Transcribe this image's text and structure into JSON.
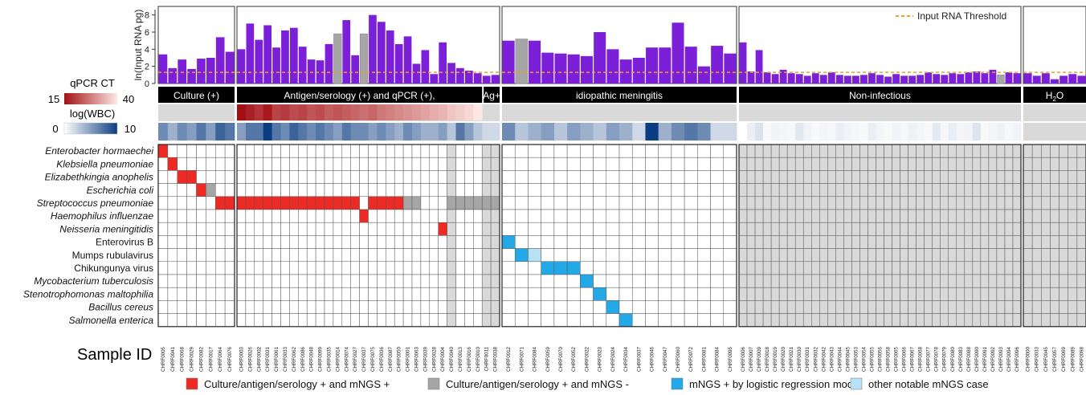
{
  "chart_data": {
    "type": "heatmap",
    "top_panel": {
      "type": "bar",
      "ylabel": "ln(Input RNA pg)",
      "y_ticks": [
        "0",
        "2",
        "4",
        "6",
        "8"
      ],
      "ylim": [
        0,
        9
      ],
      "threshold": {
        "label": "Input RNA Threshold",
        "value": 1.3,
        "color": "#f0a020"
      },
      "bar_color": "#7b1fd9",
      "fail_color": "#a6a6a6",
      "values": [
        3.4,
        1.8,
        2.8,
        1.7,
        2.9,
        3.0,
        5.4,
        3.7,
        4.0,
        7.0,
        5.1,
        6.8,
        4.2,
        6.2,
        6.5,
        4.3,
        2.8,
        2.7,
        4.6,
        5.8,
        7.4,
        3.3,
        5.8,
        8.0,
        7.2,
        6.2,
        4.6,
        5.5,
        2.3,
        3.9,
        1.1,
        4.8,
        2.4,
        1.8,
        1.5,
        1.2,
        0.9,
        1.0,
        5.0,
        5.2,
        5.0,
        3.6,
        3.5,
        3.4,
        3.2,
        6.0,
        4.0,
        2.8,
        3.0,
        4.2,
        4.2,
        7.1,
        4.3,
        2.0,
        4.4,
        3.5,
        4.8,
        1.4,
        3.9,
        1.3,
        1.1,
        1.6,
        1.2,
        1.1,
        0.9,
        1.2,
        1.0,
        1.3,
        1.0,
        0.9,
        0.9,
        1.0,
        1.2,
        1.0,
        0.8,
        1.1,
        0.9,
        0.9,
        1.0,
        1.3,
        1.1,
        1.0,
        1.2,
        1.1,
        1.3,
        1.4,
        1.2,
        1.6,
        1.0,
        1.3,
        1.2,
        1.2,
        0.9,
        1.2,
        0.5,
        0.9,
        1.1,
        0.9
      ],
      "failed_indices": [
        19,
        22,
        39,
        88
      ]
    },
    "groups": [
      {
        "label": "Culture (+)",
        "start": 0,
        "count": 8
      },
      {
        "label": "Antigen/serology (+) and qPCR (+),",
        "start": 8,
        "count": 28
      },
      {
        "label": "Ag+",
        "start": 36,
        "count": 2
      },
      {
        "label": "idiopathic meningitis",
        "start": 38,
        "count": 18
      },
      {
        "label": "Non-infectious",
        "start": 56,
        "count": 35
      },
      {
        "label": "H",
        "label_sub": "2",
        "label_end": "O",
        "start": 91,
        "count": 7
      }
    ],
    "qpcr_legend": {
      "title": "qPCR CT",
      "min": "15",
      "max": "40",
      "color_low": "#a31014",
      "color_high": "#fde8e4"
    },
    "wbc_legend": {
      "title": "log(WBC)",
      "min": "0",
      "max": "10",
      "color_low": "#ffffff",
      "color_high": "#0b3d82"
    },
    "qpcr_values": [
      15,
      17,
      19,
      16,
      21,
      20,
      22,
      21,
      23,
      22,
      24,
      23,
      24,
      25,
      26,
      25,
      27,
      28,
      29,
      30,
      31,
      32,
      33,
      34,
      36,
      37,
      38,
      40
    ],
    "wbc_values": [
      6,
      4,
      6,
      5,
      7,
      5,
      8,
      7,
      5,
      7,
      7,
      10,
      7,
      6,
      8,
      7,
      6,
      7,
      6,
      5,
      7,
      6,
      6,
      5,
      6,
      5,
      4,
      6,
      5,
      4,
      4,
      5,
      3,
      7,
      5,
      3,
      2,
      2,
      6,
      3,
      4,
      5,
      3,
      5,
      4,
      3,
      5,
      4,
      2,
      10,
      4,
      6,
      7,
      6,
      2,
      2,
      0,
      0.8,
      1.5,
      0.3,
      0.6,
      0.5,
      0.4,
      1.2,
      0.6,
      0.3,
      0.5,
      0.4,
      0.8,
      0.6,
      0.4,
      0.3,
      0.8,
      0.5,
      0.3,
      0.6,
      0.4,
      0.7,
      0.5,
      0.3,
      1.1,
      0.4,
      0.9,
      0.5,
      0.6,
      1.4,
      0.3,
      0.5,
      0.7,
      0.4,
      0.6
    ],
    "organisms": [
      {
        "name": "Enterobacter  hormaechei",
        "italic": true
      },
      {
        "name": "Klebsiella pneumoniae",
        "italic": true
      },
      {
        "name": "Elizabethkingia anophelis",
        "italic": true
      },
      {
        "name": "Escherichia coli",
        "italic": true
      },
      {
        "name": "Streptococcus pneumoniae",
        "italic": true
      },
      {
        "name": "Haemophilus influenzae",
        "italic": true
      },
      {
        "name": "Neisseria meningitidis",
        "italic": true
      },
      {
        "name": "Enterovirus B",
        "italic": false
      },
      {
        "name": "Mumps rubulavirus",
        "italic": false
      },
      {
        "name": "Chikungunya virus",
        "italic": false
      },
      {
        "name": "Mycobacterium tuberculosis",
        "italic": true
      },
      {
        "name": "Stenotrophomonas maltophilia",
        "italic": true
      },
      {
        "name": "Bacillus cereus",
        "italic": true
      },
      {
        "name": "Salmonella enterica",
        "italic": true
      }
    ],
    "cell_colors": {
      "red": "#ee2a24",
      "gray": "#a6a6a6",
      "blue": "#23a9e8",
      "lightblue": "#b7e1f7",
      "shade": "#d9d9d9"
    },
    "cells": {
      "red": [
        [
          0,
          0
        ],
        [
          1,
          1
        ],
        [
          2,
          2
        ],
        [
          2,
          3
        ],
        [
          3,
          4
        ],
        [
          4,
          6
        ],
        [
          4,
          7
        ],
        [
          4,
          8
        ],
        [
          4,
          9
        ],
        [
          4,
          10
        ],
        [
          4,
          11
        ],
        [
          4,
          12
        ],
        [
          4,
          13
        ],
        [
          4,
          14
        ],
        [
          4,
          15
        ],
        [
          4,
          16
        ],
        [
          4,
          17
        ],
        [
          4,
          18
        ],
        [
          4,
          19
        ],
        [
          4,
          20
        ],
        [
          4,
          21
        ],
        [
          4,
          23
        ],
        [
          4,
          24
        ],
        [
          4,
          25
        ],
        [
          4,
          26
        ],
        [
          5,
          22
        ],
        [
          6,
          31
        ]
      ],
      "gray": [
        [
          3,
          5
        ],
        [
          4,
          27
        ],
        [
          4,
          28
        ],
        [
          4,
          32
        ],
        [
          4,
          33
        ],
        [
          4,
          34
        ],
        [
          4,
          35
        ],
        [
          4,
          36
        ],
        [
          4,
          37
        ]
      ],
      "blue": [
        [
          7,
          38
        ],
        [
          8,
          39
        ],
        [
          9,
          41
        ],
        [
          9,
          42
        ],
        [
          9,
          43
        ],
        [
          10,
          44
        ],
        [
          11,
          45
        ],
        [
          12,
          46
        ],
        [
          13,
          47
        ]
      ],
      "lightblue": [
        [
          8,
          40
        ]
      ],
      "shaded_columns": [
        32,
        36,
        37
      ]
    },
    "sample_axis_label": "Sample ID",
    "sample_ids": [
      "CHRF0005",
      "CHRF0041",
      "CHRF0068",
      "CHRF0029",
      "CHRF0082",
      "CHRF0017",
      "CHRF0064",
      "CHRF0076",
      "CHRF0003",
      "CHRF0026",
      "CHRF0002",
      "CHRF0031",
      "CHRF0061",
      "CHRF0033",
      "CHRF0062",
      "CHRF0086",
      "CHRF0048",
      "CHRF0099",
      "CHRF0035",
      "CHRF0014",
      "CHRF0074",
      "CHRF0027",
      "CHRF0037",
      "CHRF0075",
      "CHRF0036",
      "CHRF0087",
      "CHRF0050",
      "CHRF0001",
      "CHRF0063",
      "CHRF0039",
      "CHRF0028",
      "CHRF0004",
      "CHRF0040",
      "CHRF0013",
      "CHRF0016",
      "CHRF0010",
      "CHRF0011",
      "CHRF0038",
      "CHRF0012",
      "CHRF0071",
      "CHRF0084",
      "CHRF0059",
      "CHRF0070",
      "CHRF0052",
      "CHRF0022",
      "CHRF0023",
      "CHRF0024",
      "CHRF0034",
      "CHRF0037",
      "CHRF0046",
      "CHRF0047",
      "CHRF0060",
      "CHRF0072",
      "CHRF0081",
      "CHRF0084",
      "CHRF0095",
      "CHRF0006",
      "CHRF0007",
      "CHRF0009",
      "CHRF0018",
      "CHRF0019",
      "CHRF0020",
      "CHRF0021",
      "CHRF0030",
      "CHRF0031",
      "CHRF0032",
      "CHRF0042",
      "CHRF0043",
      "CHRF0044",
      "CHRF0045",
      "CHRF0053",
      "CHRF0054",
      "CHRF0055",
      "CHRF0056",
      "CHRF0058",
      "CHRF0065",
      "CHRF0066",
      "CHRF0067",
      "CHRF0068",
      "CHRF0077",
      "CHRF0078",
      "CHRF0079",
      "CHRF0080",
      "CHRF0083",
      "CHRF0088",
      "CHRF0090",
      "CHRF0091",
      "CHRF0092",
      "CHRF0093",
      "CHRF0094",
      "CHRF0096",
      "CHRF0000",
      "CHRF0033",
      "CHRF0045",
      "CHRF0057",
      "CHRF0069",
      "CHRF0089",
      "CHRF0098"
    ],
    "legend": [
      {
        "label": "Culture/antigen/serology + and mNGS +",
        "color": "#ee2a24"
      },
      {
        "label": "Culture/antigen/serology + and mNGS -",
        "color": "#a6a6a6"
      },
      {
        "label": "mNGS + by logistic regression model",
        "color": "#23a9e8"
      },
      {
        "label": "other notable mNGS case",
        "color": "#b7e1f7"
      }
    ]
  }
}
